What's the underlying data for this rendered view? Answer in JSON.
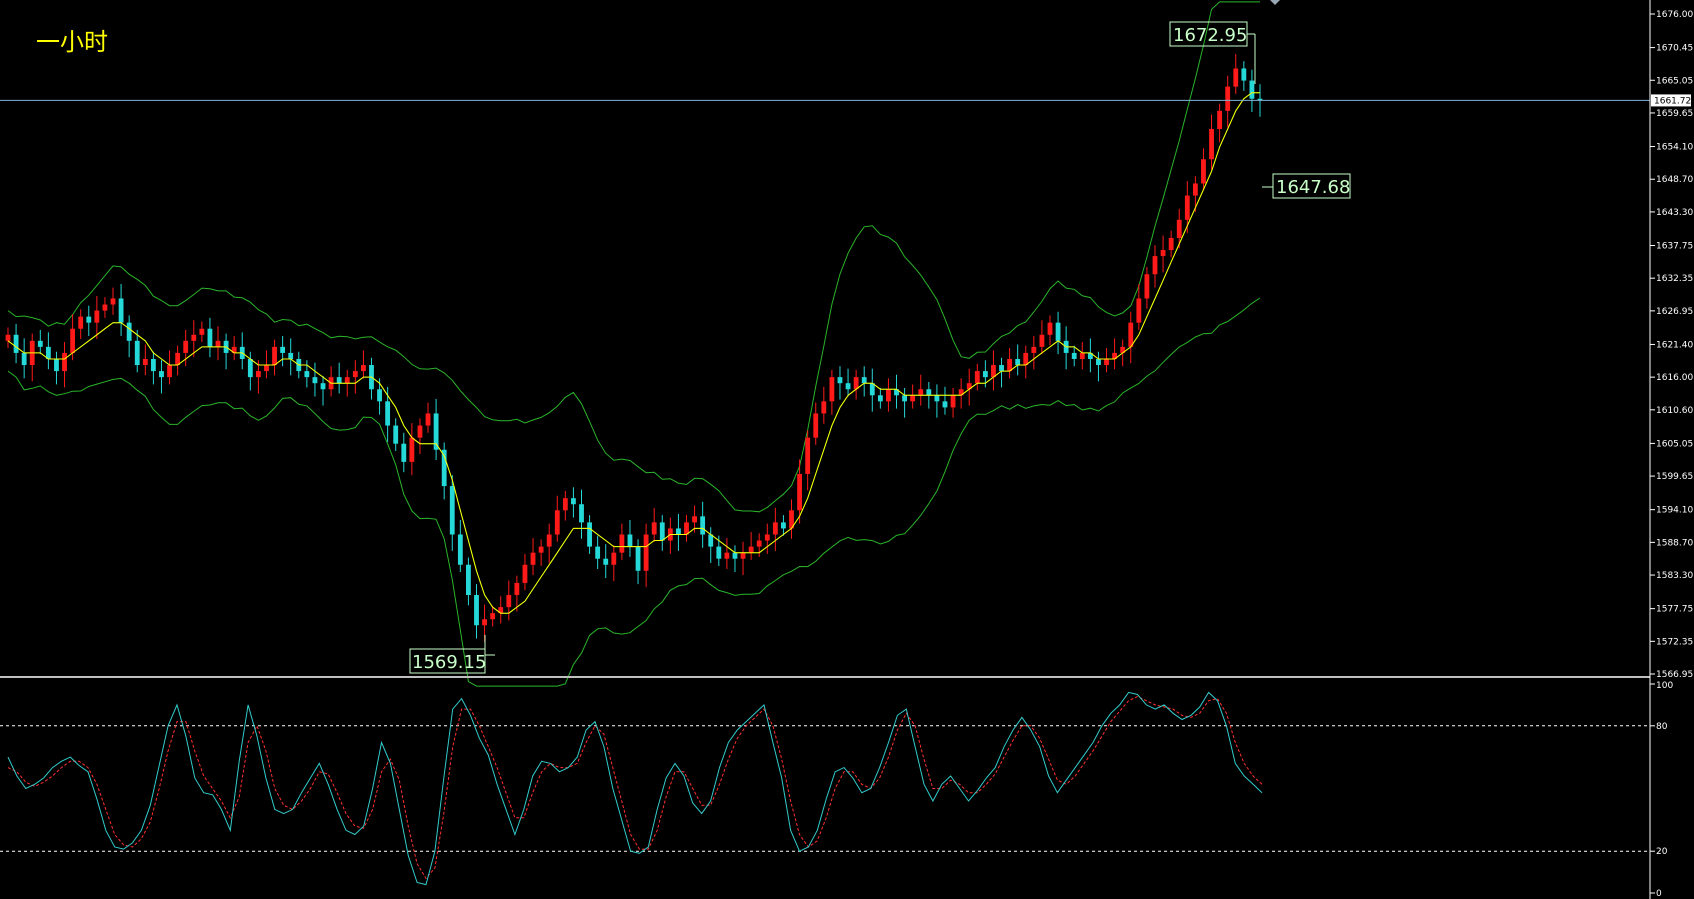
{
  "title": "一小时",
  "colors": {
    "background": "#000000",
    "bull": "#26d9d9",
    "bear": "#ff1a1a",
    "ma": "#ffff00",
    "bands": "#2ab52a",
    "k_line": "#33cccc",
    "d_line": "#ff3030",
    "guide": "#7fb3d5"
  },
  "current_price": "1661.72",
  "current_price_value": 1661.72,
  "annotations": [
    {
      "text": "1672.95",
      "value": 1672.95
    },
    {
      "text": "1647.68",
      "value": 1647.68
    },
    {
      "text": "1569.15",
      "value": 1569.15
    }
  ],
  "price_axis": {
    "ticks": [
      "1676.00",
      "1670.45",
      "1665.05",
      "1659.65",
      "1654.10",
      "1648.70",
      "1643.30",
      "1637.75",
      "1632.35",
      "1626.95",
      "1621.40",
      "1616.00",
      "1610.60",
      "1605.05",
      "1599.65",
      "1594.10",
      "1588.70",
      "1583.30",
      "1577.75",
      "1572.35",
      "1566.95"
    ],
    "range": [
      1566.95,
      1676.0
    ]
  },
  "oscillator_axis": {
    "ticks": [
      "100",
      "80",
      "20",
      "0"
    ],
    "levels": [
      80,
      20
    ],
    "range": [
      0,
      100
    ]
  },
  "chart_data": [
    {
      "type": "candlestick",
      "title": "一小时",
      "ylim": [
        1566.95,
        1676.0
      ],
      "closes": [
        1623,
        1620,
        1618,
        1622,
        1621,
        1619,
        1617,
        1620,
        1624,
        1626,
        1625,
        1627,
        1628,
        1629,
        1625,
        1622,
        1618,
        1619,
        1617,
        1616,
        1618,
        1620,
        1622,
        1623,
        1624,
        1621,
        1622,
        1620,
        1621,
        1619,
        1616,
        1617,
        1618,
        1621,
        1620,
        1619,
        1617,
        1616,
        1615,
        1614,
        1616,
        1615,
        1616,
        1617,
        1618,
        1614,
        1612,
        1608,
        1605,
        1602,
        1606,
        1608,
        1610,
        1604,
        1598,
        1590,
        1585,
        1580,
        1575,
        1576,
        1577,
        1578,
        1580,
        1582,
        1585,
        1587,
        1588,
        1590,
        1594,
        1596,
        1595,
        1592,
        1588,
        1586,
        1585,
        1587,
        1590,
        1588,
        1584,
        1590,
        1592,
        1589,
        1591,
        1590,
        1592,
        1593,
        1590,
        1588,
        1586,
        1587,
        1586,
        1587,
        1588,
        1589,
        1590,
        1592,
        1591,
        1594,
        1600,
        1606,
        1610,
        1612,
        1616,
        1615,
        1614,
        1616,
        1615,
        1613,
        1612,
        1614,
        1613,
        1612,
        1613,
        1614,
        1613,
        1612,
        1611,
        1613,
        1614,
        1615,
        1617,
        1616,
        1618,
        1617,
        1619,
        1618,
        1620,
        1621,
        1623,
        1625,
        1622,
        1620,
        1619,
        1620,
        1619,
        1618,
        1619,
        1620,
        1621,
        1625,
        1629,
        1633,
        1636,
        1637,
        1639,
        1642,
        1646,
        1648,
        1652,
        1657,
        1660,
        1664,
        1667,
        1665,
        1662,
        1661.72
      ],
      "ma": [
        1622,
        1621,
        1620,
        1620,
        1620,
        1619,
        1619,
        1619,
        1620,
        1621,
        1622,
        1623,
        1624,
        1625,
        1625,
        1624,
        1623,
        1622,
        1620,
        1619,
        1618,
        1618,
        1619,
        1620,
        1621,
        1621,
        1621,
        1621,
        1620,
        1620,
        1619,
        1618,
        1618,
        1618,
        1619,
        1619,
        1618,
        1618,
        1617,
        1616,
        1615,
        1615,
        1615,
        1615,
        1616,
        1616,
        1615,
        1613,
        1611,
        1608,
        1606,
        1605,
        1605,
        1605,
        1603,
        1599,
        1594,
        1589,
        1584,
        1580,
        1578,
        1577,
        1577,
        1578,
        1579,
        1581,
        1583,
        1585,
        1587,
        1589,
        1591,
        1591,
        1591,
        1590,
        1589,
        1588,
        1588,
        1588,
        1588,
        1588,
        1589,
        1589,
        1590,
        1590,
        1590,
        1591,
        1591,
        1590,
        1589,
        1588,
        1587,
        1587,
        1587,
        1587,
        1588,
        1589,
        1590,
        1591,
        1593,
        1596,
        1600,
        1604,
        1608,
        1611,
        1613,
        1614,
        1615,
        1615,
        1614,
        1614,
        1614,
        1613,
        1613,
        1613,
        1613,
        1613,
        1613,
        1613,
        1613,
        1614,
        1615,
        1615,
        1616,
        1617,
        1617,
        1618,
        1618,
        1619,
        1620,
        1621,
        1622,
        1621,
        1621,
        1620,
        1620,
        1619,
        1619,
        1619,
        1620,
        1621,
        1623,
        1626,
        1629,
        1632,
        1635,
        1638,
        1641,
        1644,
        1647,
        1650,
        1654,
        1657,
        1660,
        1662,
        1663,
        1663
      ]
    },
    {
      "type": "line",
      "title": "",
      "ylim": [
        0,
        100
      ],
      "levels": [
        80,
        20
      ],
      "series": [
        {
          "values": [
            65,
            56,
            50,
            52,
            55,
            60,
            63,
            65,
            61,
            58,
            45,
            30,
            22,
            21,
            24,
            30,
            42,
            61,
            80,
            90,
            75,
            55,
            48,
            47,
            40,
            30,
            63,
            90,
            75,
            55,
            40,
            38,
            40,
            48,
            55,
            62,
            52,
            40,
            30,
            28,
            32,
            50,
            72,
            62,
            40,
            18,
            5,
            4,
            20,
            55,
            88,
            93,
            85,
            74,
            66,
            52,
            40,
            28,
            40,
            56,
            63,
            62,
            58,
            60,
            65,
            78,
            82,
            70,
            50,
            35,
            20,
            19,
            22,
            40,
            55,
            62,
            56,
            43,
            38,
            44,
            60,
            72,
            78,
            82,
            86,
            90,
            72,
            55,
            30,
            20,
            22,
            30,
            45,
            58,
            60,
            55,
            48,
            50,
            60,
            72,
            85,
            88,
            70,
            52,
            44,
            52,
            56,
            50,
            44,
            49,
            55,
            60,
            70,
            78,
            84,
            78,
            70,
            56,
            48,
            54,
            60,
            66,
            72,
            80,
            86,
            90,
            96,
            95,
            90,
            88,
            90,
            86,
            83,
            85,
            89,
            96,
            92,
            80,
            62,
            56,
            52,
            48
          ]
        },
        {
          "values": [
            60,
            58,
            53,
            51,
            53,
            56,
            60,
            63,
            63,
            60,
            52,
            40,
            28,
            23,
            22,
            26,
            34,
            50,
            68,
            82,
            82,
            68,
            56,
            50,
            44,
            36,
            46,
            72,
            80,
            68,
            50,
            42,
            40,
            44,
            50,
            58,
            57,
            48,
            38,
            32,
            31,
            40,
            58,
            64,
            54,
            32,
            14,
            7,
            12,
            38,
            70,
            88,
            88,
            80,
            70,
            60,
            48,
            36,
            36,
            48,
            58,
            62,
            60,
            60,
            62,
            72,
            80,
            76,
            60,
            44,
            28,
            21,
            21,
            30,
            46,
            58,
            58,
            50,
            42,
            42,
            52,
            64,
            74,
            80,
            84,
            88,
            80,
            64,
            44,
            28,
            22,
            25,
            36,
            50,
            58,
            58,
            52,
            50,
            55,
            65,
            78,
            86,
            80,
            64,
            50,
            50,
            54,
            52,
            48,
            48,
            52,
            57,
            65,
            73,
            80,
            80,
            74,
            64,
            54,
            52,
            56,
            62,
            68,
            75,
            82,
            87,
            92,
            94,
            92,
            90,
            89,
            88,
            85,
            84,
            86,
            92,
            93,
            86,
            72,
            62,
            56,
            52
          ]
        }
      ]
    }
  ]
}
